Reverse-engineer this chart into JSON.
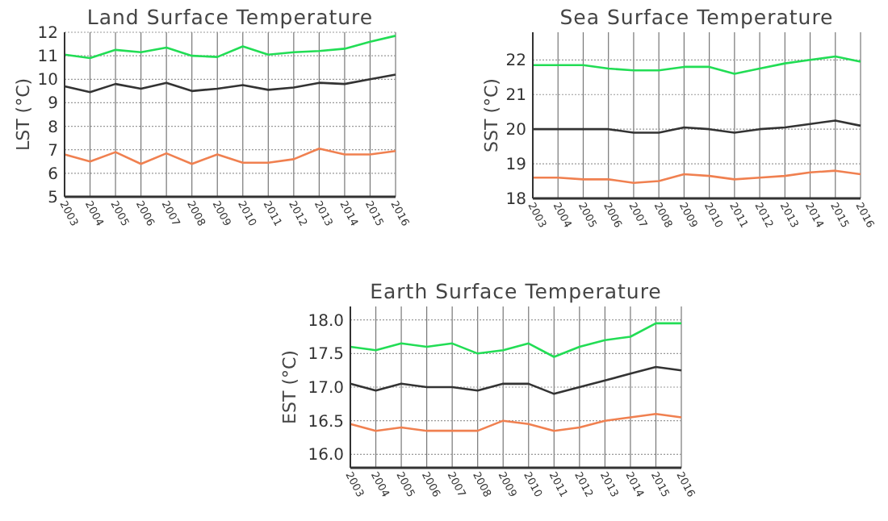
{
  "chart_data": [
    {
      "type": "line",
      "title": "Land Surface Temperature",
      "ylabel": "LST (°C)",
      "categories": [
        "2003",
        "2004",
        "2005",
        "2006",
        "2007",
        "2008",
        "2009",
        "2010",
        "2011",
        "2012",
        "2013",
        "2014",
        "2015",
        "2016"
      ],
      "ylim": [
        5,
        12
      ],
      "yticks": [
        5,
        6,
        7,
        8,
        9,
        10,
        11,
        12
      ],
      "grid": true,
      "series": [
        {
          "color": "#22dd55",
          "values": [
            11.05,
            10.9,
            11.25,
            11.15,
            11.35,
            11.0,
            10.95,
            11.4,
            11.05,
            11.15,
            11.2,
            11.3,
            11.6,
            11.85
          ]
        },
        {
          "color": "#333333",
          "values": [
            9.7,
            9.45,
            9.8,
            9.6,
            9.85,
            9.5,
            9.6,
            9.75,
            9.55,
            9.65,
            9.85,
            9.8,
            10.0,
            10.2
          ]
        },
        {
          "color": "#f08050",
          "values": [
            6.8,
            6.5,
            6.9,
            6.4,
            6.85,
            6.4,
            6.8,
            6.45,
            6.45,
            6.6,
            7.05,
            6.8,
            6.8,
            6.95
          ]
        }
      ]
    },
    {
      "type": "line",
      "title": "Sea Surface Temperature",
      "ylabel": "SST (°C)",
      "categories": [
        "2003",
        "2004",
        "2005",
        "2006",
        "2007",
        "2008",
        "2009",
        "2010",
        "2011",
        "2012",
        "2013",
        "2014",
        "2015",
        "2016"
      ],
      "ylim": [
        18,
        22.8
      ],
      "yticks": [
        18,
        19,
        20,
        21,
        22
      ],
      "grid": true,
      "series": [
        {
          "color": "#22dd55",
          "values": [
            21.85,
            21.85,
            21.85,
            21.75,
            21.7,
            21.7,
            21.8,
            21.8,
            21.6,
            21.75,
            21.9,
            22.0,
            22.1,
            21.95
          ]
        },
        {
          "color": "#333333",
          "values": [
            20.0,
            20.0,
            20.0,
            20.0,
            19.9,
            19.9,
            20.05,
            20.0,
            19.9,
            20.0,
            20.05,
            20.15,
            20.25,
            20.1
          ]
        },
        {
          "color": "#f08050",
          "values": [
            18.6,
            18.6,
            18.55,
            18.55,
            18.45,
            18.5,
            18.7,
            18.65,
            18.55,
            18.6,
            18.65,
            18.75,
            18.8,
            18.7
          ]
        }
      ]
    },
    {
      "type": "line",
      "title": "Earth Surface Temperature",
      "ylabel": "EST (°C)",
      "categories": [
        "2003",
        "2004",
        "2005",
        "2006",
        "2007",
        "2008",
        "2009",
        "2010",
        "2011",
        "2012",
        "2013",
        "2014",
        "2015",
        "2016"
      ],
      "ylim": [
        15.8,
        18.2
      ],
      "yticks": [
        {
          "value": 16,
          "label": "16.0"
        },
        16.5,
        {
          "value": 17,
          "label": "17.0"
        },
        17.5,
        {
          "value": 18,
          "label": "18.0"
        }
      ],
      "grid": true,
      "series": [
        {
          "color": "#22dd55",
          "values": [
            17.6,
            17.55,
            17.65,
            17.6,
            17.65,
            17.5,
            17.55,
            17.65,
            17.45,
            17.6,
            17.7,
            17.75,
            17.95,
            17.95
          ]
        },
        {
          "color": "#333333",
          "values": [
            17.05,
            16.95,
            17.05,
            17.0,
            17.0,
            16.95,
            17.05,
            17.05,
            16.9,
            17.0,
            17.1,
            17.2,
            17.3,
            17.25
          ]
        },
        {
          "color": "#f08050",
          "values": [
            16.45,
            16.35,
            16.4,
            16.35,
            16.35,
            16.35,
            16.5,
            16.45,
            16.35,
            16.4,
            16.5,
            16.55,
            16.6,
            16.55
          ]
        }
      ]
    }
  ]
}
